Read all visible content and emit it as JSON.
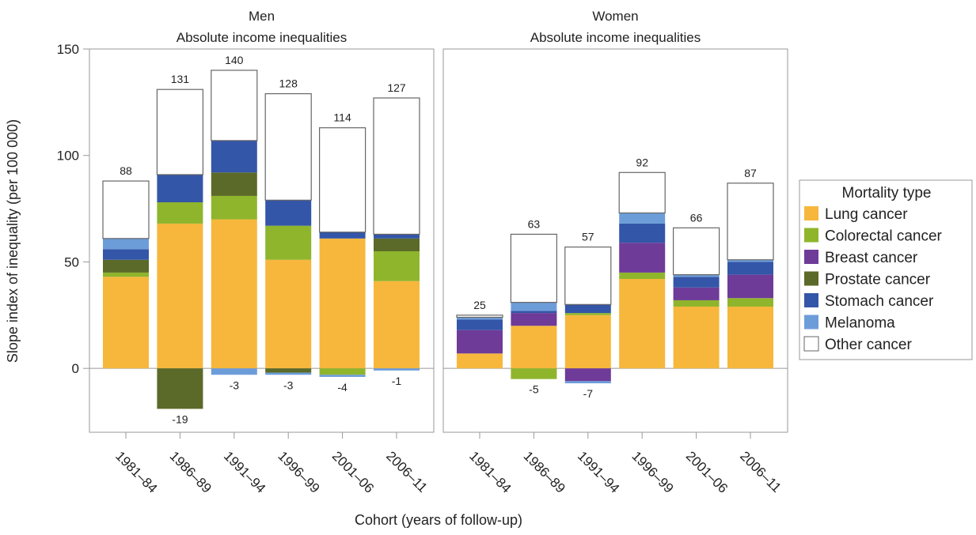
{
  "chart_data": {
    "type": "bar",
    "stacked": true,
    "ylabel": "Slope index of inequality (per 100 000)",
    "xlabel": "Cohort (years of follow-up)",
    "legend_title": "Mortality type",
    "ylim": [
      -30,
      150
    ],
    "yticks": [
      0,
      50,
      100,
      150
    ],
    "categories": [
      "1981–84",
      "1986–89",
      "1991–94",
      "1996–99",
      "2001–06",
      "2006–11"
    ],
    "panels": [
      {
        "title": "Men",
        "subtitle": "Absolute income inequalities",
        "totals": [
          88,
          131,
          140,
          128,
          114,
          127
        ],
        "negative_totals": [
          null,
          -19,
          -3,
          -3,
          -4,
          -1
        ]
      },
      {
        "title": "Women",
        "subtitle": "Absolute income inequalities",
        "totals": [
          25,
          63,
          57,
          92,
          66,
          87
        ],
        "negative_totals": [
          null,
          -5,
          -7,
          null,
          null,
          null
        ]
      }
    ],
    "series": [
      {
        "name": "Lung cancer",
        "color": "#f6b73c",
        "values": [
          [
            43,
            68,
            70,
            51,
            61,
            41
          ],
          [
            7,
            20,
            25,
            42,
            29,
            29
          ]
        ]
      },
      {
        "name": "Colorectal cancer",
        "color": "#8fb52c",
        "values": [
          [
            2,
            10,
            11,
            16,
            -3,
            14
          ],
          [
            0,
            -5,
            1,
            3,
            3,
            4
          ]
        ]
      },
      {
        "name": "Breast cancer",
        "color": "#6e3b98",
        "values": [
          [
            0,
            0,
            0,
            0,
            0,
            0
          ],
          [
            11,
            6,
            -6,
            14,
            6,
            11
          ]
        ]
      },
      {
        "name": "Prostate cancer",
        "color": "#5b6a28",
        "values": [
          [
            6,
            -19,
            11,
            -2,
            0,
            6
          ],
          [
            0,
            0,
            0,
            0,
            0,
            0
          ]
        ]
      },
      {
        "name": "Stomach cancer",
        "color": "#3456a8",
        "values": [
          [
            5,
            13,
            15,
            12,
            3,
            2
          ],
          [
            5,
            1,
            4,
            9,
            5,
            6
          ]
        ]
      },
      {
        "name": "Melanoma",
        "color": "#6d9dd9",
        "values": [
          [
            5,
            0,
            -3,
            -1,
            -1,
            -1
          ],
          [
            1,
            4,
            -1,
            5,
            1,
            1
          ]
        ]
      },
      {
        "name": "Other cancer",
        "color": "#ffffff",
        "values": [
          [
            27,
            40,
            33,
            50,
            49,
            64
          ],
          [
            1,
            32,
            27,
            19,
            22,
            36
          ]
        ]
      }
    ]
  }
}
